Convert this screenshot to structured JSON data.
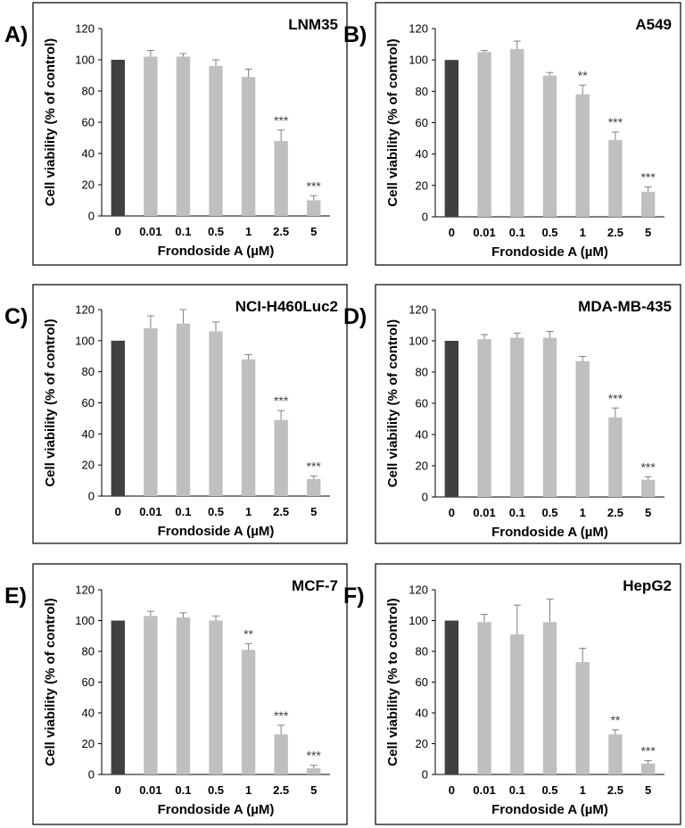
{
  "chart_data": [
    {
      "type": "bar",
      "letter": "A)",
      "title": "LNM35",
      "xlabel": "Frondoside A (µM)",
      "ylabel": "Cell viability (% of control)",
      "ylim": [
        0,
        120
      ],
      "yticks": [
        "0",
        "20",
        "40",
        "60",
        "80",
        "100",
        "120"
      ],
      "categories": [
        "0",
        "0.01",
        "0.1",
        "0.5",
        "1",
        "2.5",
        "5"
      ],
      "values": [
        100,
        102,
        102,
        96,
        89,
        48,
        10
      ],
      "errors": [
        0,
        4,
        2,
        4,
        5,
        7,
        3
      ],
      "annotations": [
        "",
        "",
        "",
        "",
        "",
        "***",
        "***"
      ],
      "bar_colors": [
        "#404040",
        "#bfbfbf",
        "#bfbfbf",
        "#bfbfbf",
        "#bfbfbf",
        "#bfbfbf",
        "#bfbfbf"
      ]
    },
    {
      "type": "bar",
      "letter": "B)",
      "title": "A549",
      "xlabel": "Frondoside A (µM)",
      "ylabel": "Cell viability (% of control)",
      "ylim": [
        0,
        120
      ],
      "yticks": [
        "0",
        "20",
        "40",
        "60",
        "80",
        "100",
        "120"
      ],
      "categories": [
        "0",
        "0.01",
        "0.1",
        "0.5",
        "1",
        "2.5",
        "5"
      ],
      "values": [
        100,
        105,
        107,
        90,
        78,
        49,
        16
      ],
      "errors": [
        0,
        1,
        5,
        2,
        6,
        5,
        3
      ],
      "annotations": [
        "",
        "",
        "",
        "",
        "**",
        "***",
        "***"
      ],
      "bar_colors": [
        "#404040",
        "#bfbfbf",
        "#bfbfbf",
        "#bfbfbf",
        "#bfbfbf",
        "#bfbfbf",
        "#bfbfbf"
      ]
    },
    {
      "type": "bar",
      "letter": "C)",
      "title": "NCI-H460Luc2",
      "xlabel": "Frondoside A (µM)",
      "ylabel": "Cell viability (% of control)",
      "ylim": [
        0,
        120
      ],
      "yticks": [
        "0",
        "20",
        "40",
        "60",
        "80",
        "100",
        "120"
      ],
      "categories": [
        "0",
        "0.01",
        "0.1",
        "0.5",
        "1",
        "2.5",
        "5"
      ],
      "values": [
        100,
        108,
        111,
        106,
        88,
        49,
        11
      ],
      "errors": [
        0,
        8,
        9,
        6,
        3,
        6,
        2
      ],
      "annotations": [
        "",
        "",
        "",
        "",
        "",
        "***",
        "***"
      ],
      "bar_colors": [
        "#404040",
        "#bfbfbf",
        "#bfbfbf",
        "#bfbfbf",
        "#bfbfbf",
        "#bfbfbf",
        "#bfbfbf"
      ]
    },
    {
      "type": "bar",
      "letter": "D)",
      "title": "MDA-MB-435",
      "xlabel": "Frondoside A (µM)",
      "ylabel": "Cell viability (% of control)",
      "ylim": [
        0,
        120
      ],
      "yticks": [
        "0",
        "20",
        "40",
        "60",
        "80",
        "100",
        "120"
      ],
      "categories": [
        "0",
        "0.01",
        "0.1",
        "0.5",
        "1",
        "2.5",
        "5"
      ],
      "values": [
        100,
        101,
        102,
        102,
        87,
        51,
        11
      ],
      "errors": [
        0,
        3,
        3,
        4,
        3,
        6,
        2
      ],
      "annotations": [
        "",
        "",
        "",
        "",
        "",
        "***",
        "***"
      ],
      "bar_colors": [
        "#404040",
        "#bfbfbf",
        "#bfbfbf",
        "#bfbfbf",
        "#bfbfbf",
        "#bfbfbf",
        "#bfbfbf"
      ]
    },
    {
      "type": "bar",
      "letter": "E)",
      "title": "MCF-7",
      "xlabel": "Frondoside A  (µM)",
      "ylabel": "Cell viability (% of control)",
      "ylim": [
        0,
        120
      ],
      "yticks": [
        "0",
        "20",
        "40",
        "60",
        "80",
        "100",
        "120"
      ],
      "categories": [
        "0",
        "0.01",
        "0.1",
        "0.5",
        "1",
        "2.5",
        "5"
      ],
      "values": [
        100,
        103,
        102,
        100,
        81,
        26,
        4
      ],
      "errors": [
        0,
        3,
        3,
        3,
        4,
        6,
        2
      ],
      "annotations": [
        "",
        "",
        "",
        "",
        "**",
        "***",
        "***"
      ],
      "bar_colors": [
        "#404040",
        "#bfbfbf",
        "#bfbfbf",
        "#bfbfbf",
        "#bfbfbf",
        "#bfbfbf",
        "#bfbfbf"
      ]
    },
    {
      "type": "bar",
      "letter": "F)",
      "title": "HepG2",
      "xlabel": "Frondoside A (µM)",
      "ylabel": "Cell viability (% to control)",
      "ylim": [
        0,
        120
      ],
      "yticks": [
        "0",
        "20",
        "40",
        "60",
        "80",
        "100",
        "120"
      ],
      "categories": [
        "0",
        "0.01",
        "0.1",
        "0.5",
        "1",
        "2.5",
        "5"
      ],
      "values": [
        100,
        99,
        91,
        99,
        73,
        26,
        7
      ],
      "errors": [
        0,
        5,
        19,
        15,
        9,
        3,
        2
      ],
      "annotations": [
        "",
        "",
        "",
        "",
        "",
        "**",
        "***"
      ],
      "bar_colors": [
        "#404040",
        "#bfbfbf",
        "#bfbfbf",
        "#bfbfbf",
        "#bfbfbf",
        "#bfbfbf",
        "#bfbfbf"
      ]
    }
  ]
}
